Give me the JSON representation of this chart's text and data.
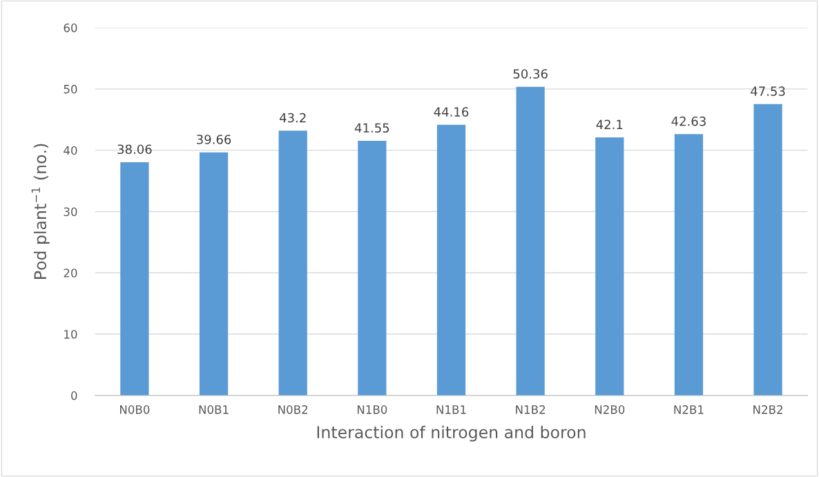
{
  "chart_data": {
    "type": "bar",
    "xlabel": "Interaction of nitrogen and boron",
    "ylabel": "Pod plant$^{−1}$ (no.)",
    "categories": [
      "N0B0",
      "N0B1",
      "N0B2",
      "N1B0",
      "N1B1",
      "N1B2",
      "N2B0",
      "N2B1",
      "N2B2"
    ],
    "values": [
      38.06,
      39.66,
      43.2,
      41.55,
      44.16,
      50.36,
      42.1,
      42.63,
      47.53
    ],
    "color": "#5b9bd5",
    "ylim": [
      0,
      60
    ],
    "yticks": [
      0,
      10,
      20,
      30,
      40,
      50,
      60
    ],
    "grid": "y",
    "data_labels": true,
    "legend": false
  }
}
